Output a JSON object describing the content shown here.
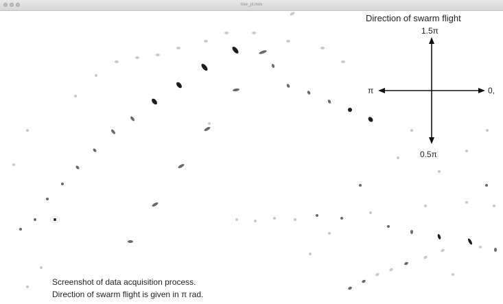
{
  "window": {
    "title": "tree_pl.mov"
  },
  "compass": {
    "title": "Direction of swarm flight",
    "label_up": "1.5π",
    "label_down": "0.5π",
    "label_left": "π",
    "label_right": "0,"
  },
  "caption": {
    "line1": "Screenshot of data acquisition process.",
    "line2": "Direction of swarm flight is given in π rad."
  },
  "colors": {
    "insect_dark": "#1e1e1e",
    "insect_mid": "#6a6a6a",
    "insect_faint": "#c9c9c9",
    "arrow": "#111111"
  }
}
